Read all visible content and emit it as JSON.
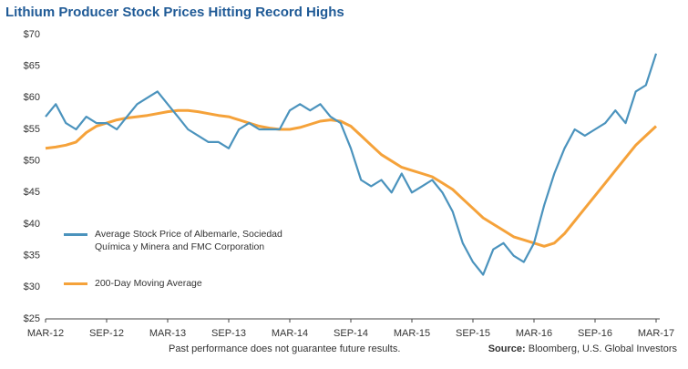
{
  "chart_data": {
    "type": "line",
    "title": "Lithium Producer Stock Prices Hitting Record Highs",
    "note": "Past performance does not guarantee future results.",
    "source_label": "Source:",
    "source_text": "Bloomberg, U.S. Global Investors",
    "categories": [
      "MAR-12",
      null,
      null,
      null,
      null,
      null,
      "SEP-12",
      null,
      null,
      null,
      null,
      null,
      "MAR-13",
      null,
      null,
      null,
      null,
      null,
      "SEP-13",
      null,
      null,
      null,
      null,
      null,
      "MAR-14",
      null,
      null,
      null,
      null,
      null,
      "SEP-14",
      null,
      null,
      null,
      null,
      null,
      "MAR-15",
      null,
      null,
      null,
      null,
      null,
      "SEP-15",
      null,
      null,
      null,
      null,
      null,
      "MAR-16",
      null,
      null,
      null,
      null,
      null,
      "SEP-16",
      null,
      null,
      null,
      null,
      null,
      "MAR-17"
    ],
    "series": [
      {
        "name": "Average Stock Price of Albemarle, Sociedad Química y Minera and FMC Corporation",
        "color": "#4b93bd",
        "values": [
          57,
          59,
          56,
          55,
          57,
          56,
          56,
          55,
          57,
          59,
          60,
          61,
          59,
          57,
          55,
          54,
          53,
          53,
          52,
          55,
          56,
          55,
          55,
          55,
          58,
          59,
          58,
          59,
          57,
          56,
          52,
          47,
          46,
          47,
          45,
          48,
          45,
          46,
          47,
          45,
          42,
          37,
          34,
          32,
          36,
          37,
          35,
          34,
          37,
          43,
          48,
          52,
          55,
          54,
          55,
          56,
          58,
          56,
          61,
          62,
          67
        ]
      },
      {
        "name": "200-Day Moving Average",
        "color": "#f5a23a",
        "values": [
          52,
          52.2,
          52.5,
          53,
          54.5,
          55.5,
          56,
          56.5,
          56.8,
          57,
          57.2,
          57.5,
          57.8,
          58,
          58,
          57.8,
          57.5,
          57.2,
          57,
          56.5,
          56,
          55.5,
          55.2,
          55,
          55,
          55.3,
          55.8,
          56.3,
          56.5,
          56.3,
          55.5,
          54,
          52.5,
          51,
          50,
          49,
          48.5,
          48,
          47.5,
          46.5,
          45.5,
          44,
          42.5,
          41,
          40,
          39,
          38,
          37.5,
          37,
          36.5,
          37,
          38.5,
          40.5,
          42.5,
          44.5,
          46.5,
          48.5,
          50.5,
          52.5,
          54,
          55.5
        ]
      }
    ],
    "ylim": [
      25,
      70
    ],
    "yticks": [
      {
        "value": 25,
        "label": "$25"
      },
      {
        "value": 30,
        "label": "$30"
      },
      {
        "value": 35,
        "label": "$35"
      },
      {
        "value": 40,
        "label": "$40"
      },
      {
        "value": 45,
        "label": "$45"
      },
      {
        "value": 50,
        "label": "$50"
      },
      {
        "value": 55,
        "label": "$55"
      },
      {
        "value": 60,
        "label": "$60"
      },
      {
        "value": 65,
        "label": "$65"
      },
      {
        "value": 70,
        "label": "$70"
      }
    ],
    "grid": false
  }
}
